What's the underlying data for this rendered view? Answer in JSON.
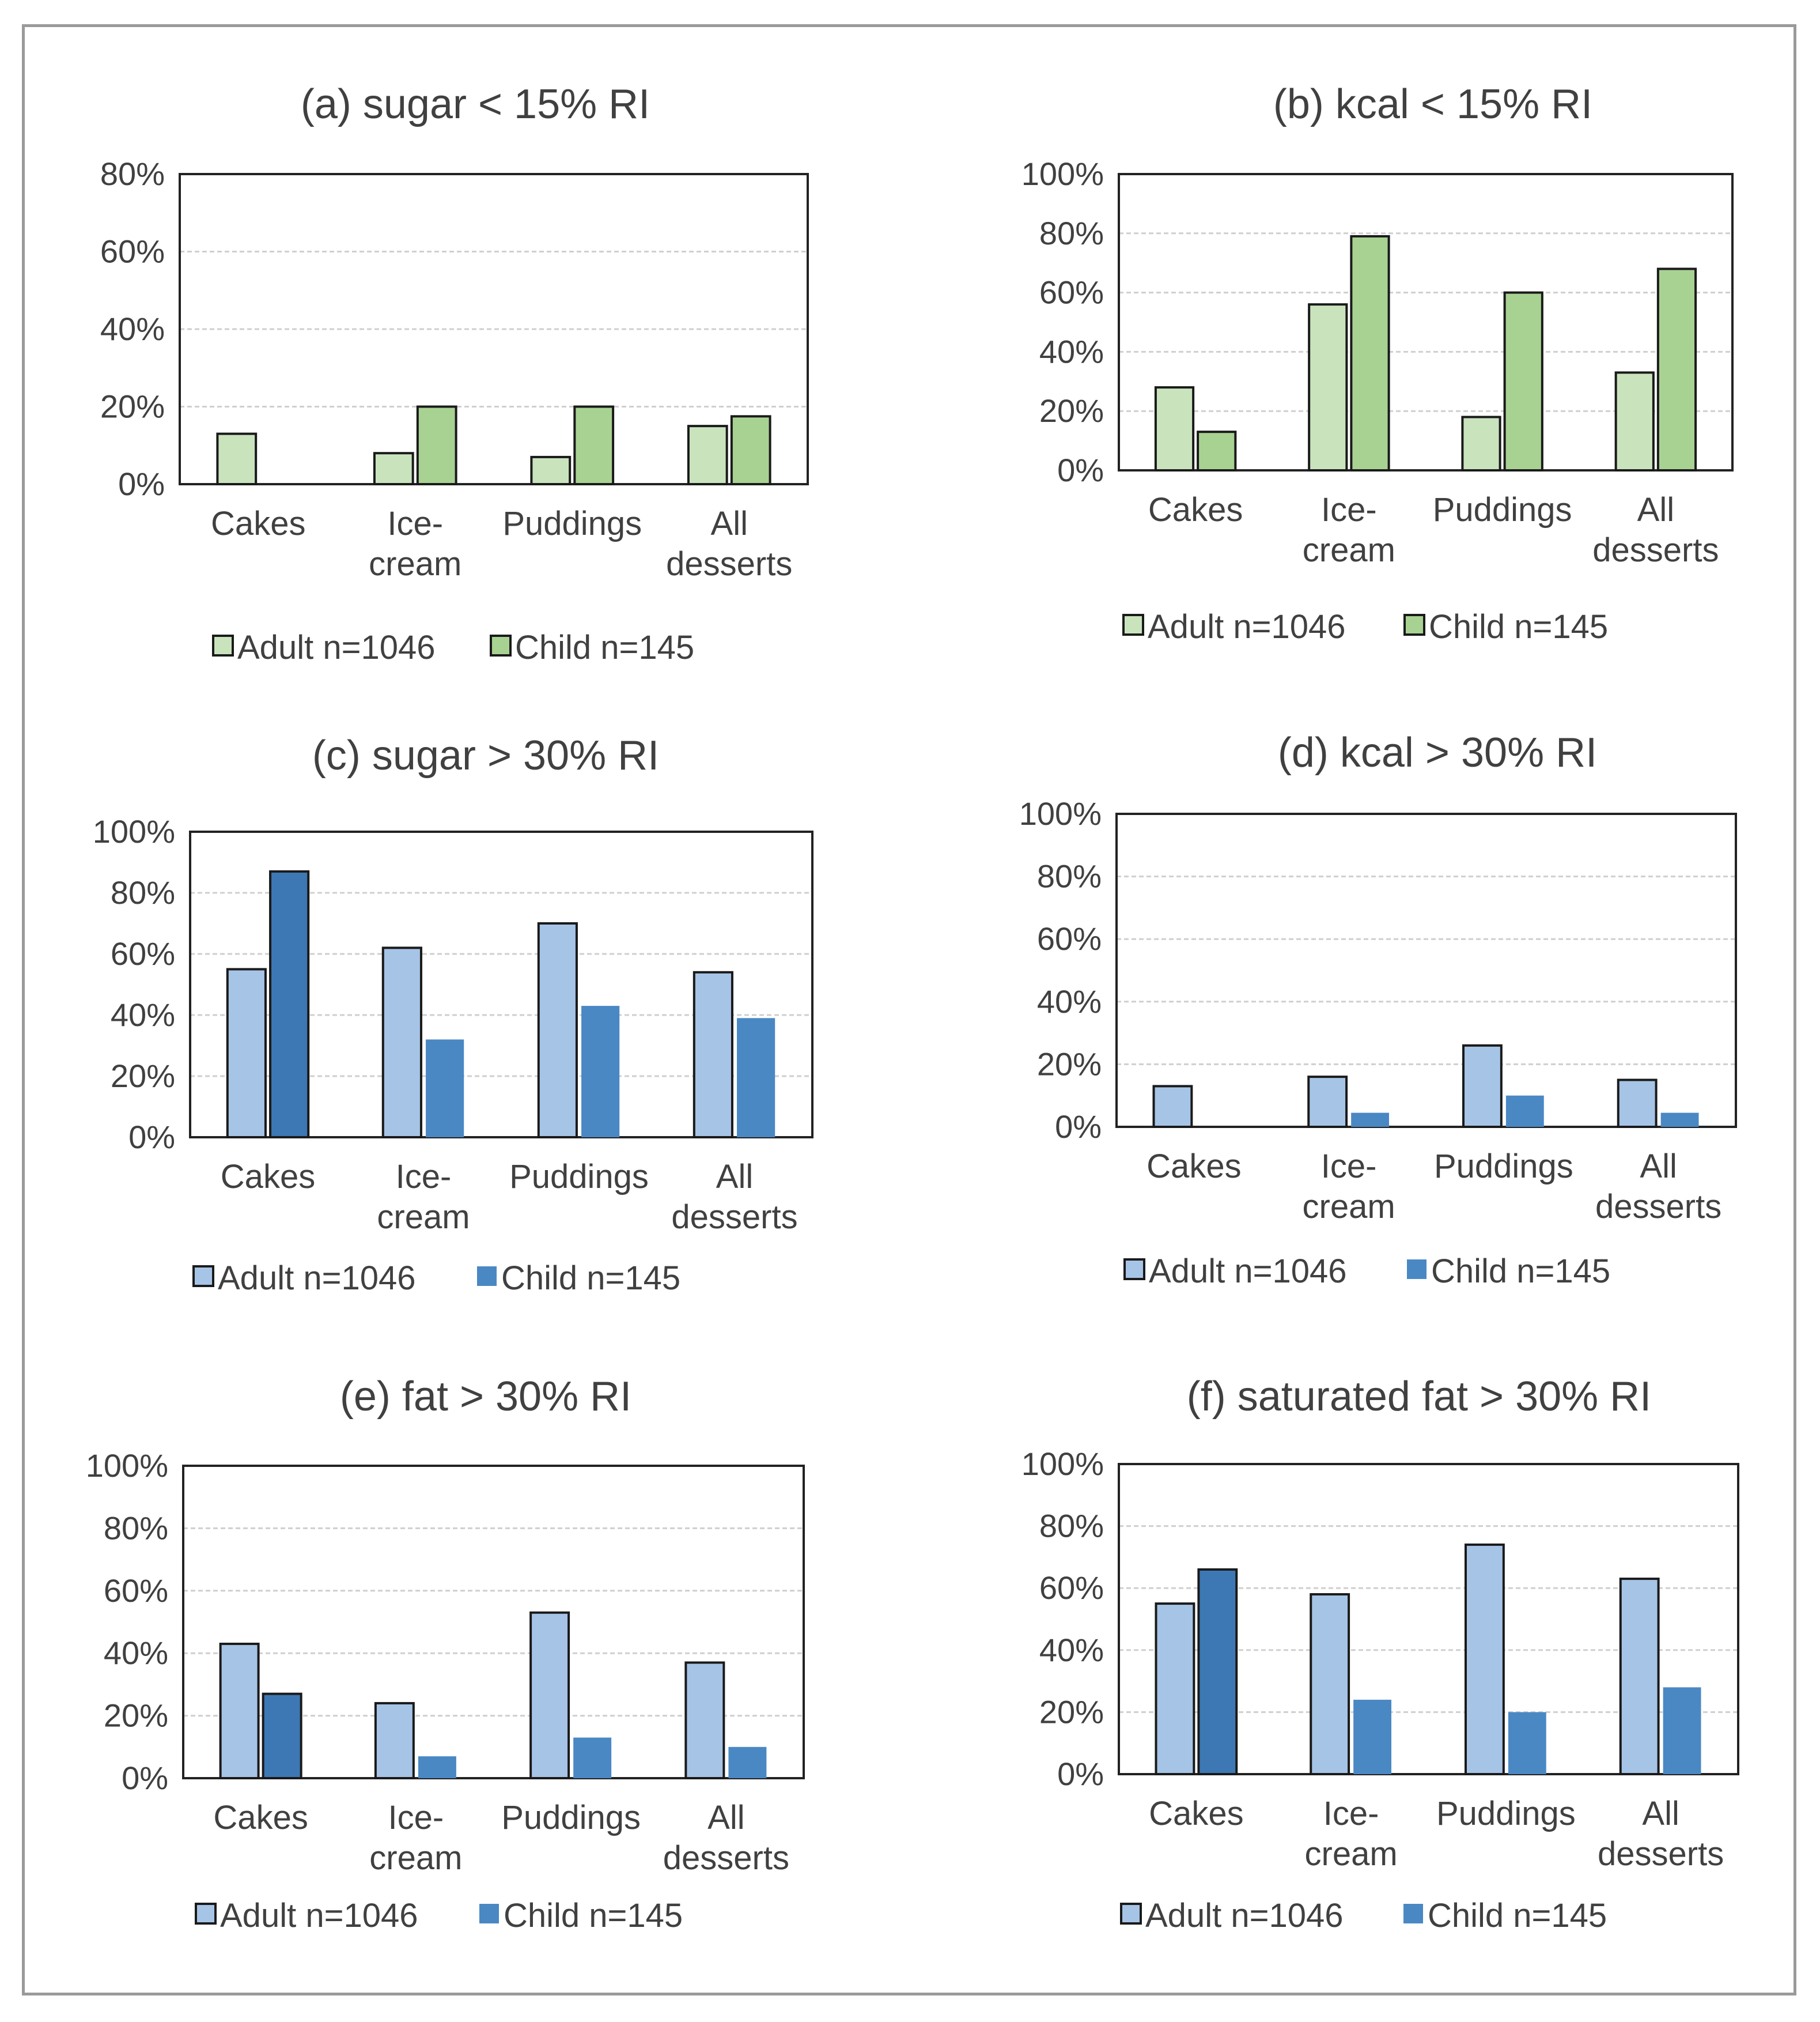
{
  "chart_data": [
    {
      "id": "a",
      "type": "bar",
      "title": "(a) sugar < 15% RI",
      "categories": [
        [
          "Cakes"
        ],
        [
          "Ice-",
          "cream"
        ],
        [
          "Puddings"
        ],
        [
          "All",
          "desserts"
        ]
      ],
      "yticks": [
        "0%",
        "20%",
        "40%",
        "60%",
        "80%"
      ],
      "ylim": [
        0,
        80
      ],
      "grid": true,
      "series": [
        {
          "name": "Adult n=1046",
          "values": [
            13,
            8,
            7,
            15
          ],
          "colors": [
            "#c9e4bd",
            "#c9e4bd",
            "#c9e4bd",
            "#c9e4bd"
          ],
          "outline": true
        },
        {
          "name": "Child n=145",
          "values": [
            0,
            20,
            20,
            17.5
          ],
          "colors": [
            "#a8d292",
            "#a8d292",
            "#a8d292",
            "#a8d292"
          ],
          "outline": true
        }
      ],
      "legend_colors": [
        "#c9e4bd",
        "#a8d292"
      ],
      "legend_outline": [
        true,
        true
      ]
    },
    {
      "id": "b",
      "type": "bar",
      "title": "(b) kcal < 15% RI",
      "categories": [
        [
          "Cakes"
        ],
        [
          "Ice-",
          "cream"
        ],
        [
          "Puddings"
        ],
        [
          "All",
          "desserts"
        ]
      ],
      "yticks": [
        "0%",
        "20%",
        "40%",
        "60%",
        "80%",
        "100%"
      ],
      "ylim": [
        0,
        100
      ],
      "grid": true,
      "series": [
        {
          "name": "Adult n=1046",
          "values": [
            28,
            56,
            18,
            33
          ],
          "colors": [
            "#c9e4bd",
            "#c9e4bd",
            "#c9e4bd",
            "#c9e4bd"
          ],
          "outline": true
        },
        {
          "name": "Child n=145",
          "values": [
            13,
            79,
            60,
            68
          ],
          "colors": [
            "#a8d292",
            "#a8d292",
            "#a8d292",
            "#a8d292"
          ],
          "outline": true
        }
      ],
      "legend_colors": [
        "#c9e4bd",
        "#a8d292"
      ],
      "legend_outline": [
        true,
        true
      ]
    },
    {
      "id": "c",
      "type": "bar",
      "title": "(c) sugar > 30% RI",
      "categories": [
        [
          "Cakes"
        ],
        [
          "Ice-",
          "cream"
        ],
        [
          "Puddings"
        ],
        [
          "All",
          "desserts"
        ]
      ],
      "yticks": [
        "0%",
        "20%",
        "40%",
        "60%",
        "80%",
        "100%"
      ],
      "ylim": [
        0,
        100
      ],
      "grid": true,
      "series": [
        {
          "name": "Adult n=1046",
          "values": [
            55,
            62,
            70,
            54
          ],
          "colors": [
            "#a6c4e6",
            "#a6c4e6",
            "#a6c4e6",
            "#a6c4e6"
          ],
          "outline": true
        },
        {
          "name": "Child n=145",
          "values": [
            87,
            32,
            43,
            39
          ],
          "colors": [
            "#3d78b4",
            "#4a88c4",
            "#4a88c4",
            "#4a88c4"
          ],
          "outline": false,
          "outline_first": true
        }
      ],
      "legend_colors": [
        "#a6c4e6",
        "#4a88c4"
      ],
      "legend_outline": [
        true,
        false
      ]
    },
    {
      "id": "d",
      "type": "bar",
      "title": "(d) kcal > 30% RI",
      "categories": [
        [
          "Cakes"
        ],
        [
          "Ice-",
          "cream"
        ],
        [
          "Puddings"
        ],
        [
          "All",
          "desserts"
        ]
      ],
      "yticks": [
        "0%",
        "20%",
        "40%",
        "60%",
        "80%",
        "100%"
      ],
      "ylim": [
        0,
        100
      ],
      "grid": true,
      "series": [
        {
          "name": "Adult n=1046",
          "values": [
            13,
            16,
            26,
            15
          ],
          "colors": [
            "#a6c4e6",
            "#a6c4e6",
            "#a6c4e6",
            "#a6c4e6"
          ],
          "outline": true
        },
        {
          "name": "Child n=145",
          "values": [
            0,
            4.5,
            10,
            4.5
          ],
          "colors": [
            "#4a88c4",
            "#4a88c4",
            "#4a88c4",
            "#4a88c4"
          ],
          "outline": false
        }
      ],
      "legend_colors": [
        "#a6c4e6",
        "#4a88c4"
      ],
      "legend_outline": [
        true,
        false
      ]
    },
    {
      "id": "e",
      "type": "bar",
      "title": "(e) fat > 30% RI",
      "categories": [
        [
          "Cakes"
        ],
        [
          "Ice-",
          "cream"
        ],
        [
          "Puddings"
        ],
        [
          "All",
          "desserts"
        ]
      ],
      "yticks": [
        "0%",
        "20%",
        "40%",
        "60%",
        "80%",
        "100%"
      ],
      "ylim": [
        0,
        100
      ],
      "grid": true,
      "series": [
        {
          "name": "Adult n=1046",
          "values": [
            43,
            24,
            53,
            37
          ],
          "colors": [
            "#a6c4e6",
            "#a6c4e6",
            "#a6c4e6",
            "#a6c4e6"
          ],
          "outline": true
        },
        {
          "name": "Child n=145",
          "values": [
            27,
            7,
            13,
            10
          ],
          "colors": [
            "#3d78b4",
            "#4a88c4",
            "#4a88c4",
            "#4a88c4"
          ],
          "outline": false,
          "outline_first": true
        }
      ],
      "legend_colors": [
        "#a6c4e6",
        "#4a88c4"
      ],
      "legend_outline": [
        true,
        false
      ]
    },
    {
      "id": "f",
      "type": "bar",
      "title": "(f) saturated fat > 30% RI",
      "categories": [
        [
          "Cakes"
        ],
        [
          "Ice-",
          "cream"
        ],
        [
          "Puddings"
        ],
        [
          "All",
          "desserts"
        ]
      ],
      "yticks": [
        "0%",
        "20%",
        "40%",
        "60%",
        "80%",
        "100%"
      ],
      "ylim": [
        0,
        100
      ],
      "grid": true,
      "series": [
        {
          "name": "Adult n=1046",
          "values": [
            55,
            58,
            74,
            63
          ],
          "colors": [
            "#a6c4e6",
            "#a6c4e6",
            "#a6c4e6",
            "#a6c4e6"
          ],
          "outline": true
        },
        {
          "name": "Child n=145",
          "values": [
            66,
            24,
            20,
            28
          ],
          "colors": [
            "#3d78b4",
            "#4a88c4",
            "#4a88c4",
            "#4a88c4"
          ],
          "outline": false,
          "outline_first": true
        }
      ],
      "legend_colors": [
        "#a6c4e6",
        "#4a88c4"
      ],
      "legend_outline": [
        true,
        false
      ]
    }
  ]
}
